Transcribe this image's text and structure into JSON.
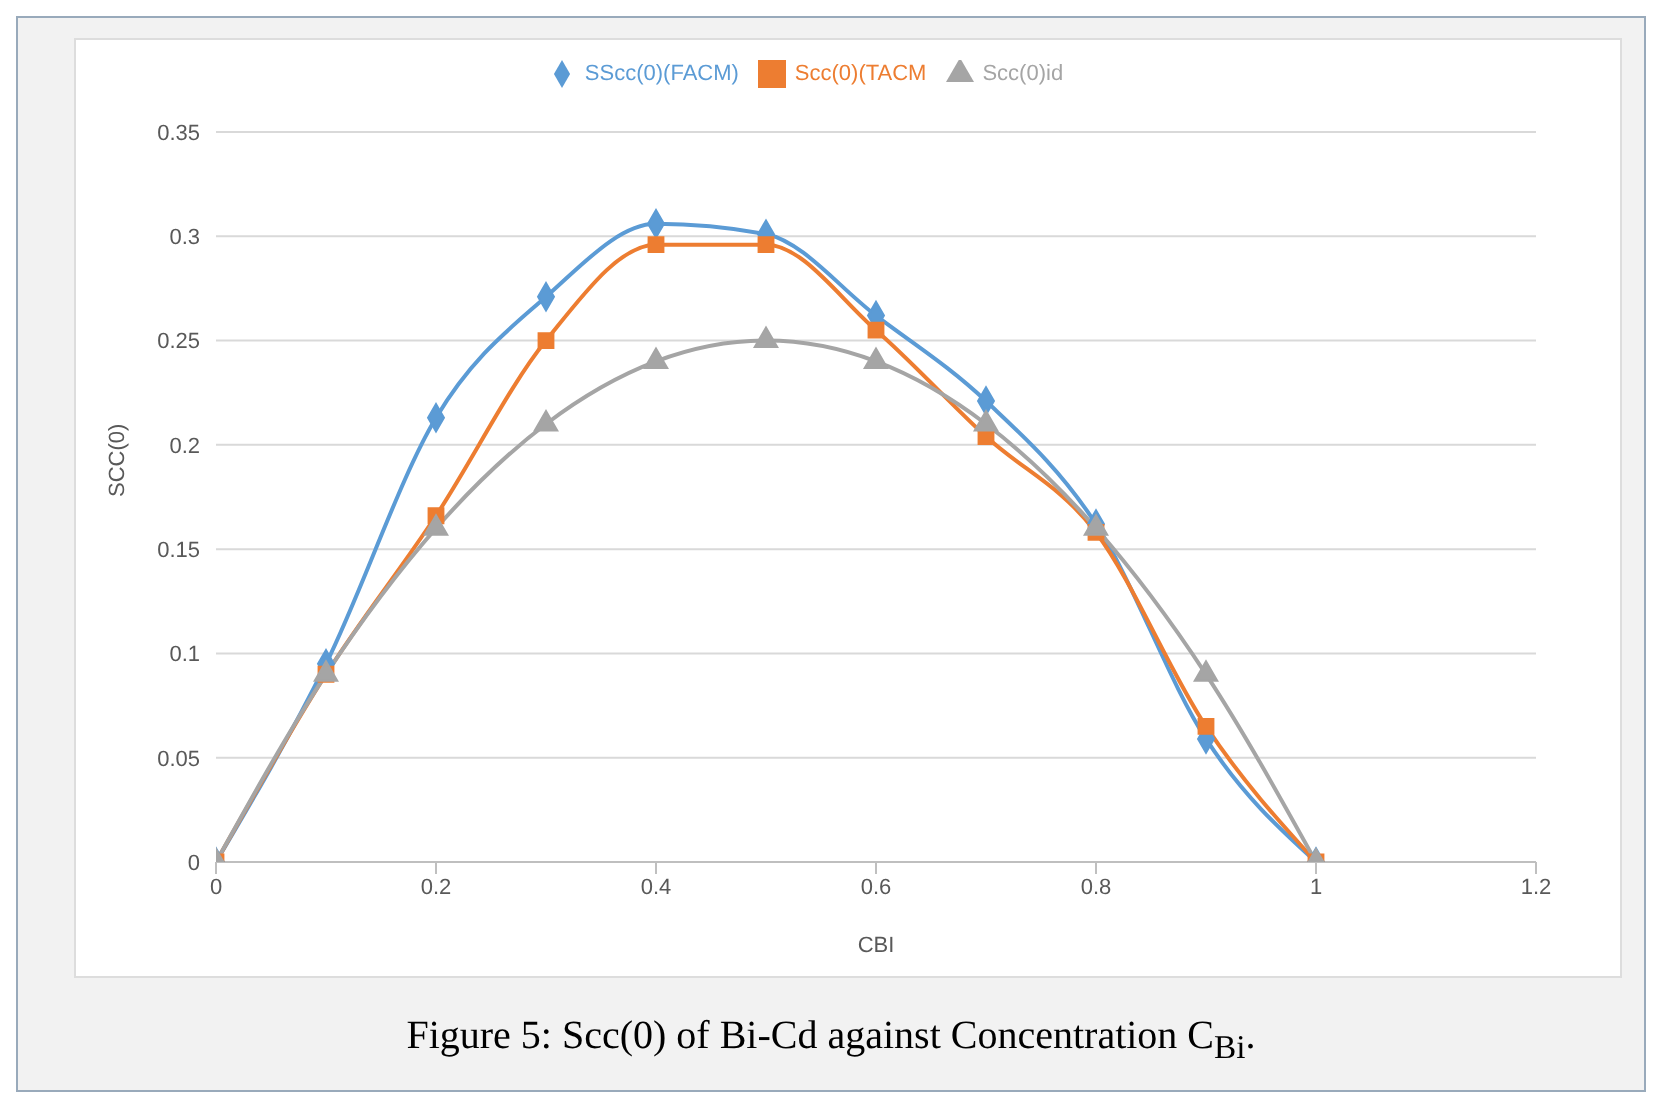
{
  "chart_data": {
    "type": "line",
    "xlabel": "CBI",
    "ylabel": "SCC(0)",
    "annotations": [
      "Figure 5: Scc(0) of Bi-Cd against Concentration C$_{Bi}$."
    ],
    "x": [
      0,
      0.1,
      0.2,
      0.3,
      0.4,
      0.5,
      0.6,
      0.7,
      0.8,
      0.9,
      1
    ],
    "series": [
      {
        "name": "SScc(0)(FACM)",
        "color": "#5b9bd5",
        "marker": "diamond",
        "values": [
          0,
          0.095,
          0.213,
          0.271,
          0.306,
          0.301,
          0.262,
          0.221,
          0.162,
          0.059,
          0
        ]
      },
      {
        "name": "Scc(0)(TACM",
        "color": "#ed7d31",
        "marker": "square",
        "values": [
          0,
          0.09,
          0.166,
          0.25,
          0.296,
          0.296,
          0.255,
          0.204,
          0.158,
          0.065,
          0
        ]
      },
      {
        "name": "Scc(0)id",
        "color": "#a5a5a5",
        "marker": "triangle",
        "values": [
          0,
          0.09,
          0.16,
          0.21,
          0.24,
          0.25,
          0.24,
          0.21,
          0.16,
          0.09,
          0
        ]
      }
    ],
    "xlim": [
      0,
      1.2
    ],
    "xticks": [
      0,
      0.2,
      0.4,
      0.6,
      0.8,
      1,
      1.2
    ],
    "ylim": [
      0,
      0.35
    ],
    "yticks": [
      0,
      0.05,
      0.1,
      0.15,
      0.2,
      0.25,
      0.3,
      0.35
    ],
    "grid": "y",
    "legend": "top",
    "line_style": "solid"
  }
}
